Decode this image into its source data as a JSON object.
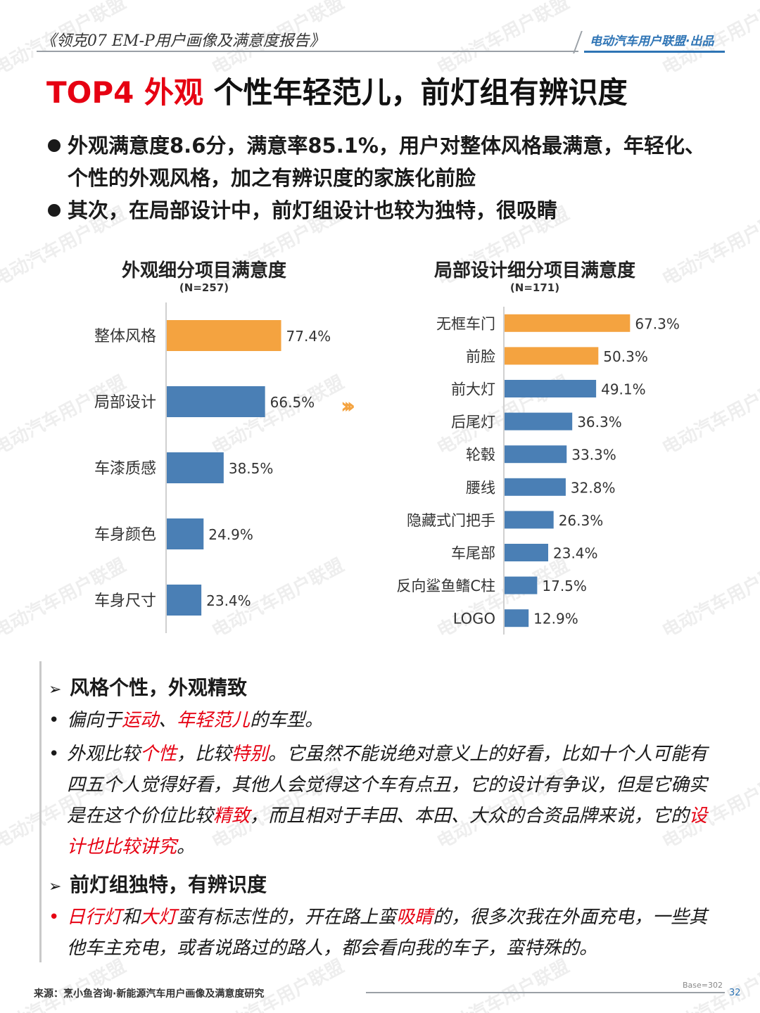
{
  "header": {
    "report_title": "《领克07 EM-P用户画像及满意度报告》",
    "brand": "电动汽车用户联盟·出品"
  },
  "title": {
    "prefix": "TOP4 外观",
    "main": " 个性年轻范儿，前灯组有辨识度"
  },
  "bullets": [
    "外观满意度8.6分，满意率85.1%，用户对整体风格最满意，年轻化、个性的外观风格，加之有辨识度的家族化前脸",
    "其次，在局部设计中，前灯组设计也较为独特，很吸睛"
  ],
  "watermark": "电动汽车用户联盟",
  "colors": {
    "accent_orange": "#f4a340",
    "bar_blue": "#4a7fb5",
    "highlight_red": "#e60012"
  },
  "chart_data": [
    {
      "type": "bar",
      "orientation": "horizontal",
      "title": "外观细分项目满意度",
      "subtitle": "(N=257)",
      "categories": [
        "整体风格",
        "局部设计",
        "车漆质感",
        "车身颜色",
        "车身尺寸"
      ],
      "values": [
        77.4,
        66.5,
        38.5,
        24.9,
        23.4
      ],
      "labels": [
        "77.4%",
        "66.5%",
        "38.5%",
        "24.9%",
        "23.4%"
      ],
      "highlight": [
        true,
        false,
        false,
        false,
        false
      ],
      "xlim": [
        0,
        100
      ]
    },
    {
      "type": "bar",
      "orientation": "horizontal",
      "title": "局部设计细分项目满意度",
      "subtitle": "(N=171)",
      "categories": [
        "无框车门",
        "前脸",
        "前大灯",
        "后尾灯",
        "轮毂",
        "腰线",
        "隐藏式门把手",
        "车尾部",
        "反向鲨鱼鳍C柱",
        "LOGO"
      ],
      "values": [
        67.3,
        50.3,
        49.1,
        36.3,
        33.3,
        32.8,
        26.3,
        23.4,
        17.5,
        12.9
      ],
      "labels": [
        "67.3%",
        "50.3%",
        "49.1%",
        "36.3%",
        "33.3%",
        "32.8%",
        "26.3%",
        "23.4%",
        "17.5%",
        "12.9%"
      ],
      "highlight": [
        true,
        true,
        false,
        false,
        false,
        false,
        false,
        false,
        false,
        false
      ],
      "xlim": [
        0,
        100
      ]
    }
  ],
  "quotes": {
    "head1": "风格个性，外观精致",
    "item1": [
      {
        "t": "偏向于",
        "hl": false
      },
      {
        "t": "运动",
        "hl": true
      },
      {
        "t": "、",
        "hl": false
      },
      {
        "t": "年轻范儿",
        "hl": true
      },
      {
        "t": "的车型。",
        "hl": false
      }
    ],
    "item2": [
      {
        "t": "外观比较",
        "hl": false
      },
      {
        "t": "个性",
        "hl": true
      },
      {
        "t": "，比较",
        "hl": false
      },
      {
        "t": "特别",
        "hl": true
      },
      {
        "t": "。它虽然不能说绝对意义上的好看，比如十个人可能有四五个人觉得好看，其他人会觉得这个车有点丑，它的设计有争议，但是它确实是在这个价位比较",
        "hl": false
      },
      {
        "t": "精致",
        "hl": true
      },
      {
        "t": "，而且相对于丰田、本田、大众的合资品牌来说，它的",
        "hl": false
      },
      {
        "t": "设计也比较讲究",
        "hl": true
      },
      {
        "t": "。",
        "hl": false
      }
    ],
    "head2": "前灯组独特，有辨识度",
    "item3": [
      {
        "t": "日行灯",
        "hl": true
      },
      {
        "t": "和",
        "hl": false
      },
      {
        "t": "大灯",
        "hl": true
      },
      {
        "t": "蛮有标志性的，开在路上蛮",
        "hl": false
      },
      {
        "t": "吸睛",
        "hl": true
      },
      {
        "t": "的，很多次我在外面充电，一些其他车主充电，或者说路过的路人，都会看向我的车子，蛮特殊的。",
        "hl": false
      }
    ]
  },
  "footer": {
    "source": "来源：烹小鱼咨询·新能源汽车用户画像及满意度研究",
    "base": "Base=302",
    "page": "32"
  }
}
